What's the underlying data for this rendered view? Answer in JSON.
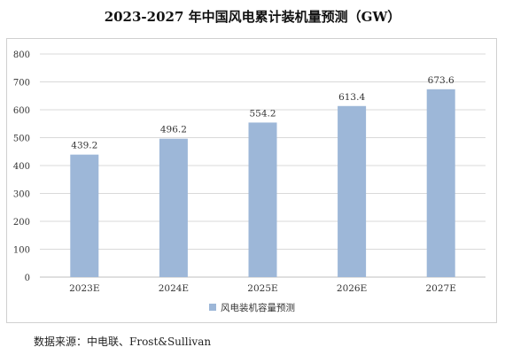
{
  "chart_data": {
    "type": "bar",
    "title": "2023-2027 年中国风电累计装机量预测（GW）",
    "categories": [
      "2023E",
      "2024E",
      "2025E",
      "2026E",
      "2027E"
    ],
    "series": [
      {
        "name": "风电装机容量预测",
        "values": [
          439.2,
          496.2,
          554.2,
          613.4,
          673.6
        ]
      }
    ],
    "yticks": [
      0,
      100,
      200,
      300,
      400,
      500,
      600,
      700,
      800
    ],
    "ylim": [
      0,
      800
    ],
    "grid": true,
    "legend_position": "bottom-center",
    "bar_color": "#9db7d8",
    "grid_color": "#d9d9d9"
  },
  "source": "数据来源：中电联、Frost&Sullivan",
  "watermark": "\u0013"
}
